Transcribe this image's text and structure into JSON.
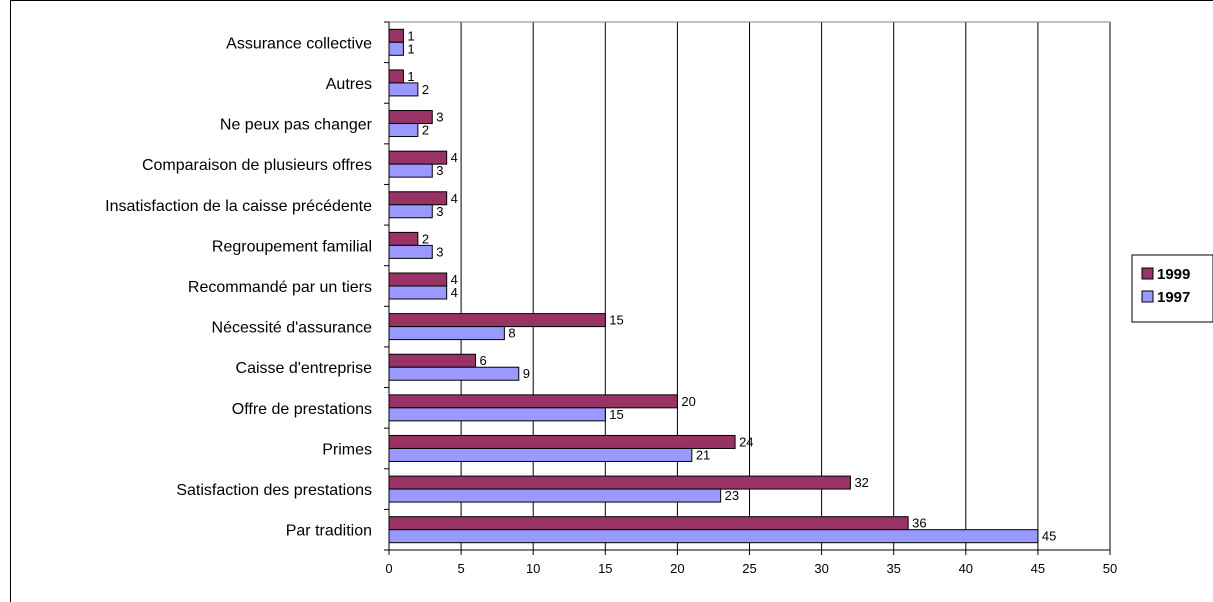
{
  "chart_data": {
    "type": "bar",
    "orientation": "horizontal",
    "categories": [
      "Assurance collective",
      "Autres",
      "Ne peux pas changer",
      "Comparaison de plusieurs offres",
      "Insatisfaction de la caisse précédente",
      "Regroupement familial",
      "Recommandé par un tiers",
      "Nécessité d'assurance",
      "Caisse d'entreprise",
      "Offre de prestations",
      "Primes",
      "Satisfaction des prestations",
      "Par tradition"
    ],
    "series": [
      {
        "name": "1999",
        "color": "#993366",
        "values": [
          1,
          1,
          3,
          4,
          4,
          2,
          4,
          15,
          6,
          20,
          24,
          32,
          36
        ]
      },
      {
        "name": "1997",
        "color": "#9999ff",
        "values": [
          1,
          2,
          2,
          3,
          3,
          3,
          4,
          8,
          9,
          15,
          21,
          23,
          45
        ]
      }
    ],
    "xlim": [
      0,
      50
    ],
    "xticks": [
      "0",
      "5",
      "10",
      "15",
      "20",
      "25",
      "30",
      "35",
      "40",
      "45",
      "50"
    ],
    "grid": true,
    "legend_position": "right",
    "data_labels": true
  }
}
